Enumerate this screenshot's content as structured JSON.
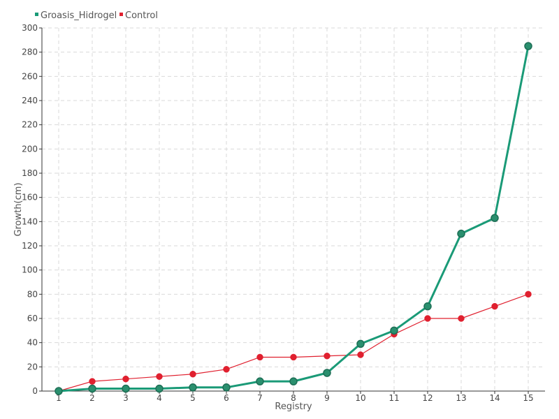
{
  "chart_data": {
    "type": "line",
    "title": "",
    "xlabel": "Registry",
    "ylabel": "Growth(cm)",
    "categories": [
      "1",
      "2",
      "3",
      "4",
      "5",
      "6",
      "7",
      "8",
      "9",
      "10",
      "11",
      "12",
      "13",
      "14",
      "15"
    ],
    "ylim": [
      0,
      300
    ],
    "yticks": [
      0,
      20,
      40,
      60,
      80,
      100,
      120,
      140,
      160,
      180,
      200,
      220,
      240,
      260,
      280,
      300
    ],
    "grid": true,
    "legend_position": "top-left",
    "series": [
      {
        "name": "Groasis_Hidrogel",
        "color": "#1a9a77",
        "values": [
          0,
          2,
          2,
          2,
          3,
          3,
          8,
          8,
          15,
          39,
          50,
          70,
          130,
          143,
          285
        ]
      },
      {
        "name": "Control",
        "color": "#e0202f",
        "values": [
          0,
          8,
          10,
          12,
          14,
          18,
          28,
          28,
          29,
          30,
          47,
          60,
          60,
          70,
          80
        ]
      }
    ]
  }
}
